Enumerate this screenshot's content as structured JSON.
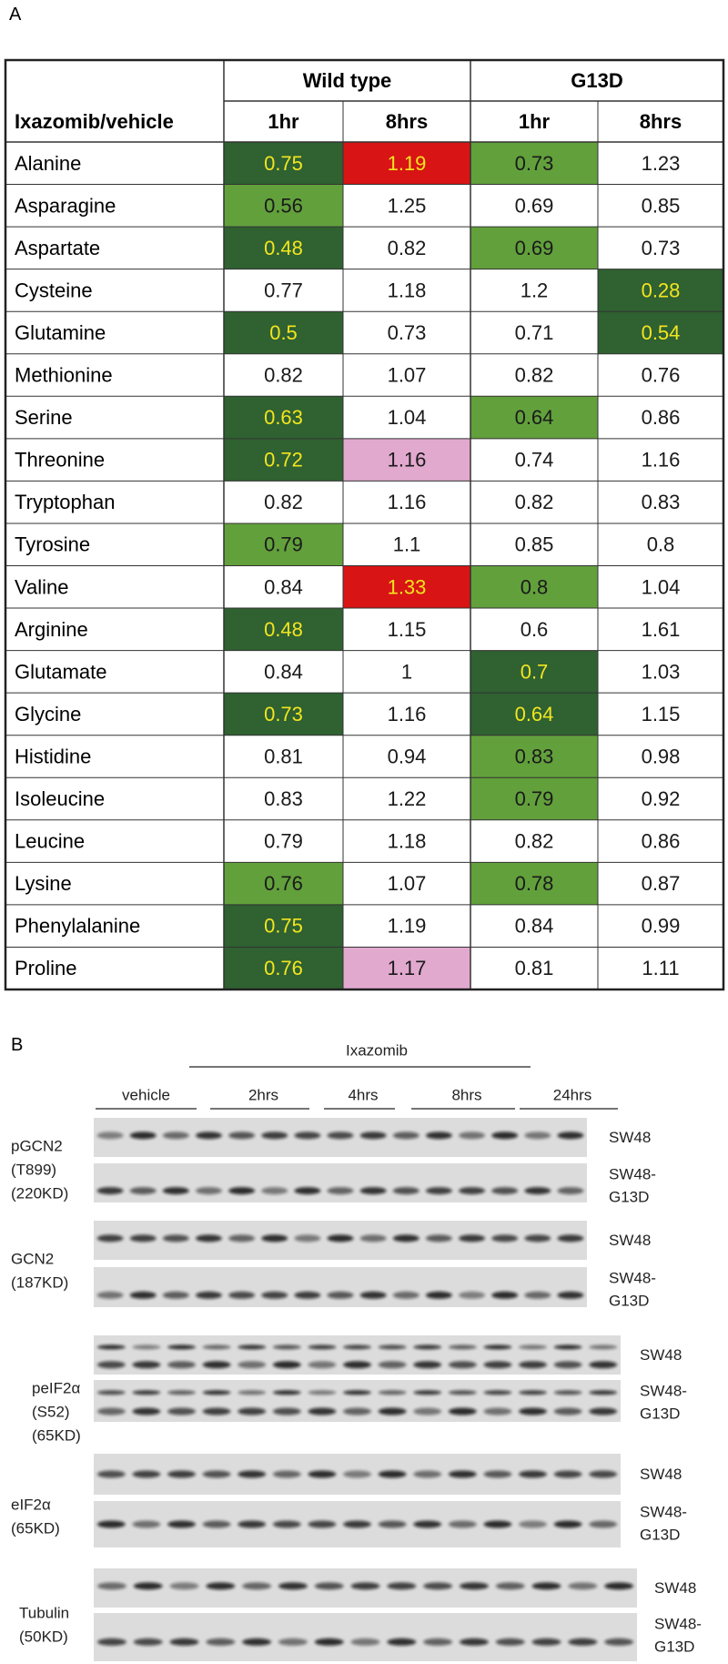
{
  "panel_a": {
    "label": "A",
    "table": {
      "row_header": "Ixazomib/vehicle",
      "groups": [
        "Wild type",
        "G13D"
      ],
      "columns": [
        "1hr",
        "8hrs",
        "1hr",
        "8hrs"
      ],
      "highlight_styles": {
        "dark": {
          "fill": "#2f6131",
          "text": "#f3e51f"
        },
        "light": {
          "fill": "#62a03c",
          "text": "#1a1a1a"
        },
        "red": {
          "fill": "#d81414",
          "text": "#f3e51f"
        },
        "pink": {
          "fill": "#e2a9cf",
          "text": "#1a1a1a"
        }
      },
      "rows": [
        {
          "name": "Alanine",
          "values": [
            0.75,
            1.19,
            0.73,
            1.23
          ],
          "highlight": [
            "dark",
            "red",
            "light",
            null
          ]
        },
        {
          "name": "Asparagine",
          "values": [
            0.56,
            1.25,
            0.69,
            0.85
          ],
          "highlight": [
            "light",
            null,
            null,
            null
          ]
        },
        {
          "name": "Aspartate",
          "values": [
            0.48,
            0.82,
            0.69,
            0.73
          ],
          "highlight": [
            "dark",
            null,
            "light",
            null
          ]
        },
        {
          "name": "Cysteine",
          "values": [
            0.77,
            1.18,
            1.2,
            0.28
          ],
          "highlight": [
            null,
            null,
            null,
            "dark"
          ]
        },
        {
          "name": "Glutamine",
          "values": [
            0.5,
            0.73,
            0.71,
            0.54
          ],
          "highlight": [
            "dark",
            null,
            null,
            "dark"
          ]
        },
        {
          "name": "Methionine",
          "values": [
            0.82,
            1.07,
            0.82,
            0.76
          ],
          "highlight": [
            null,
            null,
            null,
            null
          ]
        },
        {
          "name": "Serine",
          "values": [
            0.63,
            1.04,
            0.64,
            0.86
          ],
          "highlight": [
            "dark",
            null,
            "light",
            null
          ]
        },
        {
          "name": "Threonine",
          "values": [
            0.72,
            1.16,
            0.74,
            1.16
          ],
          "highlight": [
            "dark",
            "pink",
            null,
            null
          ]
        },
        {
          "name": "Tryptophan",
          "values": [
            0.82,
            1.16,
            0.82,
            0.83
          ],
          "highlight": [
            null,
            null,
            null,
            null
          ]
        },
        {
          "name": "Tyrosine",
          "values": [
            0.79,
            1.1,
            0.85,
            0.8
          ],
          "highlight": [
            "light",
            null,
            null,
            null
          ]
        },
        {
          "name": "Valine",
          "values": [
            0.84,
            1.33,
            0.8,
            1.04
          ],
          "highlight": [
            null,
            "red",
            "light",
            null
          ]
        },
        {
          "name": "Arginine",
          "values": [
            0.48,
            1.15,
            0.6,
            1.61
          ],
          "highlight": [
            "dark",
            null,
            null,
            null
          ]
        },
        {
          "name": "Glutamate",
          "values": [
            0.84,
            1,
            0.7,
            1.03
          ],
          "highlight": [
            null,
            null,
            "dark",
            null
          ]
        },
        {
          "name": "Glycine",
          "values": [
            0.73,
            1.16,
            0.64,
            1.15
          ],
          "highlight": [
            "dark",
            null,
            "dark",
            null
          ]
        },
        {
          "name": "Histidine",
          "values": [
            0.81,
            0.94,
            0.83,
            0.98
          ],
          "highlight": [
            null,
            null,
            "light",
            null
          ]
        },
        {
          "name": "Isoleucine",
          "values": [
            0.83,
            1.22,
            0.79,
            0.92
          ],
          "highlight": [
            null,
            null,
            "light",
            null
          ]
        },
        {
          "name": "Leucine",
          "values": [
            0.79,
            1.18,
            0.82,
            0.86
          ],
          "highlight": [
            null,
            null,
            null,
            null
          ]
        },
        {
          "name": "Lysine",
          "values": [
            0.76,
            1.07,
            0.78,
            0.87
          ],
          "highlight": [
            "light",
            null,
            "light",
            null
          ]
        },
        {
          "name": "Phenylalanine",
          "values": [
            0.75,
            1.19,
            0.84,
            0.99
          ],
          "highlight": [
            "dark",
            null,
            null,
            null
          ]
        },
        {
          "name": "Proline",
          "values": [
            0.76,
            1.17,
            0.81,
            1.11
          ],
          "highlight": [
            "dark",
            "pink",
            null,
            null
          ]
        }
      ]
    }
  },
  "panel_b": {
    "label": "B",
    "treatment": "Ixazomib",
    "timepoints": [
      "vehicle",
      "2hrs",
      "4hrs",
      "8hrs",
      "24hrs"
    ],
    "blots": [
      {
        "label_lines": [
          "pGCN2",
          "(T899)",
          "(220KD)"
        ],
        "rows": [
          {
            "cell_line": [
              "SW48"
            ]
          },
          {
            "cell_line": [
              "SW48-",
              "G13D"
            ]
          }
        ]
      },
      {
        "label_lines": [
          "GCN2",
          "(187KD)"
        ],
        "rows": [
          {
            "cell_line": [
              "SW48"
            ]
          },
          {
            "cell_line": [
              "SW48-",
              "G13D"
            ]
          }
        ]
      },
      {
        "label_lines": [
          "peIF2α",
          "(S52)",
          "(65KD)"
        ],
        "rows": [
          {
            "cell_line": [
              "SW48"
            ]
          },
          {
            "cell_line": [
              "SW48-",
              "G13D"
            ]
          }
        ]
      },
      {
        "label_lines": [
          "eIF2α",
          "(65KD)"
        ],
        "rows": [
          {
            "cell_line": [
              "SW48"
            ]
          },
          {
            "cell_line": [
              "SW48-",
              "G13D"
            ]
          }
        ]
      },
      {
        "label_lines": [
          "Tubulin",
          "(50KD)"
        ],
        "rows": [
          {
            "cell_line": [
              "SW48"
            ]
          },
          {
            "cell_line": [
              "SW48-",
              "G13D"
            ]
          }
        ]
      }
    ]
  }
}
